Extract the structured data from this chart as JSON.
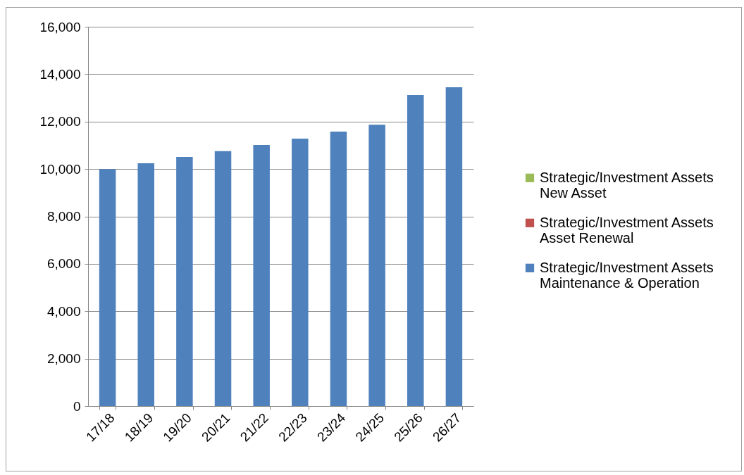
{
  "chart_data": {
    "type": "bar",
    "categories": [
      "17/18",
      "18/19",
      "19/20",
      "20/21",
      "21/22",
      "22/23",
      "23/24",
      "24/25",
      "25/26",
      "26/27"
    ],
    "series": [
      {
        "name": "Strategic/Investment Assets Maintenance & Operation",
        "color": "#4f81bd",
        "values": [
          10000,
          10240,
          10510,
          10750,
          11010,
          11280,
          11580,
          11870,
          13120,
          13450
        ]
      },
      {
        "name": "Strategic/Investment Assets Asset Renewal",
        "color": "#c0504d",
        "values": [
          0,
          0,
          0,
          0,
          0,
          0,
          0,
          0,
          0,
          0
        ]
      },
      {
        "name": "Strategic/Investment Assets New Asset",
        "color": "#9bbb59",
        "values": [
          0,
          0,
          0,
          0,
          0,
          0,
          0,
          0,
          0,
          0
        ]
      }
    ],
    "ylim": [
      0,
      16000
    ],
    "yticks": [
      0,
      {
        "value": 2000,
        "label": "2,000"
      },
      {
        "value": 4000,
        "label": "4,000"
      },
      {
        "value": 6000,
        "label": "6,000"
      },
      {
        "value": 8000,
        "label": "8,000"
      },
      {
        "value": 10000,
        "label": "10,000"
      },
      {
        "value": 12000,
        "label": "12,000"
      },
      {
        "value": 14000,
        "label": "14,000"
      },
      {
        "value": 16000,
        "label": "16,000"
      }
    ],
    "grid": "y",
    "legend": "right"
  }
}
